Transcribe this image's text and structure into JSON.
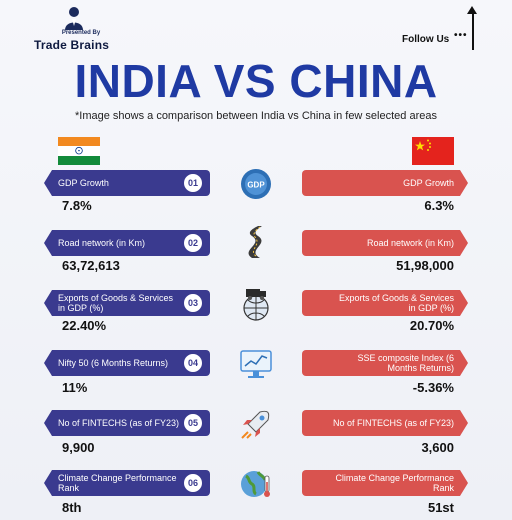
{
  "header": {
    "presented_by": "Presented By",
    "brand_name": "Trade Brains",
    "follow_label": "Follow Us",
    "follow_dots": "•••"
  },
  "title": "INDIA VS CHINA",
  "subtitle": "*Image shows a comparison between India vs China in few selected areas",
  "flags": {
    "left": "india-flag",
    "right": "china-flag"
  },
  "colors": {
    "india_pill": "#3a3a8f",
    "china_pill": "#d9534f",
    "title": "#1f3aa3"
  },
  "rows": [
    {
      "number": "01",
      "icon": "gdp-coin-icon",
      "india_label": "GDP Growth",
      "india_value": "7.8%",
      "china_label": "GDP Growth",
      "china_value": "6.3%"
    },
    {
      "number": "02",
      "icon": "road-icon",
      "india_label": "Road network (in Km)",
      "india_value": "63,72,613",
      "china_label": "Road network (in Km)",
      "china_value": "51,98,000"
    },
    {
      "number": "03",
      "icon": "globe-truck-icon",
      "india_label": "Exports of Goods & Services in GDP (%)",
      "india_value": "22.40%",
      "china_label": "Exports of Goods & Services in GDP (%)",
      "china_value": "20.70%"
    },
    {
      "number": "04",
      "icon": "stock-chart-icon",
      "india_label": "Nifty 50 (6 Months Returns)",
      "india_value": "11%",
      "china_label": "SSE composite Index (6 Months Returns)",
      "china_value": "-5.36%"
    },
    {
      "number": "05",
      "icon": "rocket-icon",
      "india_label": "No of FINTECHS (as of FY23)",
      "india_value": "9,900",
      "china_label": "No of FINTECHS (as of FY23)",
      "china_value": "3,600"
    },
    {
      "number": "06",
      "icon": "climate-globe-icon",
      "india_label": "Climate Change Performance Rank",
      "india_value": "8th",
      "china_label": "Climate Change Performance Rank",
      "china_value": "51st"
    }
  ]
}
